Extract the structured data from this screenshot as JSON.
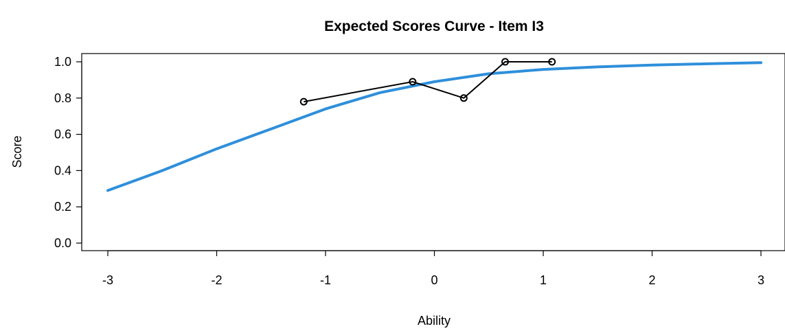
{
  "chart_data": {
    "type": "line",
    "title": "Expected Scores Curve - Item  I3",
    "xlabel": "Ability",
    "ylabel": "Score",
    "xlim": [
      -3,
      3
    ],
    "ylim": [
      0,
      1
    ],
    "x_ticks": [
      "-3",
      "-2",
      "-1",
      "0",
      "1",
      "2",
      "3"
    ],
    "y_ticks": [
      "0.0",
      "0.2",
      "0.4",
      "0.6",
      "0.8",
      "1.0"
    ],
    "grid": false,
    "series": [
      {
        "style": "smooth curve",
        "color": "#2e8fdb",
        "x": [
          -3.0,
          -2.5,
          -2.0,
          -1.5,
          -1.0,
          -0.5,
          0.0,
          0.5,
          1.0,
          1.5,
          2.0,
          2.5,
          3.0
        ],
        "y": [
          0.29,
          0.4,
          0.52,
          0.63,
          0.74,
          0.83,
          0.89,
          0.934,
          0.958,
          0.972,
          0.982,
          0.989,
          0.995
        ]
      },
      {
        "style": "line with open circles",
        "color": "#000000",
        "x": [
          -1.2,
          -0.2,
          0.27,
          0.65,
          1.08
        ],
        "y": [
          0.78,
          0.89,
          0.8,
          1.0,
          1.0
        ]
      }
    ]
  }
}
